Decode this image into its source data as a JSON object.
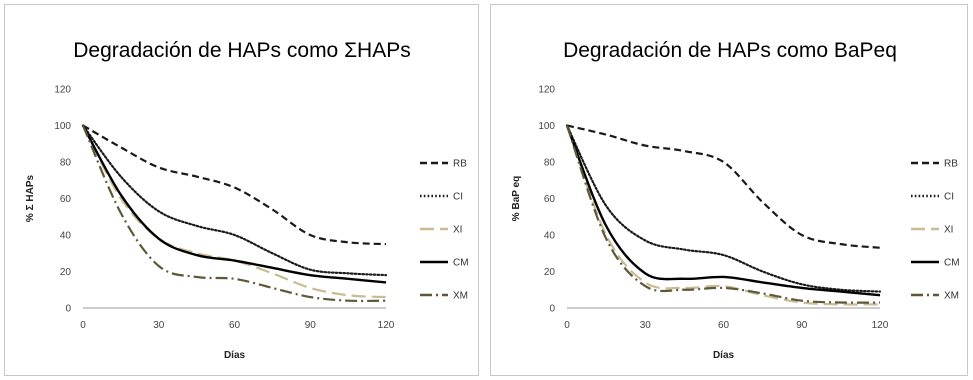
{
  "chart_data": [
    {
      "type": "line",
      "title": "Degradación de HAPs como ΣHAPs",
      "xlabel": "Días",
      "ylabel": "% Σ HAPs",
      "x_ticks": [
        "0",
        "30",
        "60",
        "90",
        "120"
      ],
      "y_ticks": [
        "0",
        "20",
        "40",
        "60",
        "80",
        "100",
        "120"
      ],
      "xlim": [
        0,
        120
      ],
      "ylim": [
        0,
        120
      ],
      "grid": false,
      "legend_position": "right",
      "series": [
        {
          "name": "RB",
          "color": "#1a1a1a",
          "style": "dashed",
          "x": [
            0,
            15,
            30,
            45,
            60,
            75,
            90,
            105,
            120
          ],
          "y": [
            100,
            88,
            77,
            72,
            66,
            54,
            40,
            36,
            35
          ]
        },
        {
          "name": "CI",
          "color": "#1a1a1a",
          "style": "dotted",
          "x": [
            0,
            15,
            30,
            45,
            60,
            75,
            90,
            105,
            120
          ],
          "y": [
            100,
            72,
            53,
            45,
            40,
            30,
            21,
            19,
            18
          ]
        },
        {
          "name": "XI",
          "color": "#c9bc95",
          "style": "long-dash",
          "x": [
            0,
            15,
            30,
            45,
            60,
            75,
            90,
            105,
            120
          ],
          "y": [
            100,
            60,
            38,
            30,
            26,
            19,
            11,
            7,
            6
          ]
        },
        {
          "name": "CM",
          "color": "#000000",
          "style": "solid",
          "x": [
            0,
            15,
            30,
            45,
            60,
            75,
            90,
            105,
            120
          ],
          "y": [
            100,
            62,
            38,
            29,
            26,
            22,
            18,
            16,
            14
          ]
        },
        {
          "name": "XM",
          "color": "#5e5839",
          "style": "dash-dot",
          "x": [
            0,
            15,
            30,
            45,
            60,
            75,
            90,
            105,
            120
          ],
          "y": [
            100,
            52,
            23,
            17,
            16,
            11,
            6,
            4,
            4
          ]
        }
      ]
    },
    {
      "type": "line",
      "title": "Degradación de HAPs como BaPeq",
      "xlabel": "Días",
      "ylabel": "% BaP eq",
      "x_ticks": [
        "0",
        "30",
        "60",
        "90",
        "120"
      ],
      "y_ticks": [
        "0",
        "20",
        "40",
        "60",
        "80",
        "100",
        "120"
      ],
      "xlim": [
        0,
        120
      ],
      "ylim": [
        0,
        120
      ],
      "grid": false,
      "legend_position": "right",
      "series": [
        {
          "name": "RB",
          "color": "#1a1a1a",
          "style": "dashed",
          "x": [
            0,
            15,
            30,
            45,
            60,
            75,
            90,
            105,
            120
          ],
          "y": [
            100,
            95,
            89,
            86,
            80,
            58,
            40,
            35,
            33
          ]
        },
        {
          "name": "CI",
          "color": "#1a1a1a",
          "style": "dotted",
          "x": [
            0,
            15,
            30,
            45,
            60,
            75,
            90,
            105,
            120
          ],
          "y": [
            100,
            56,
            37,
            32,
            29,
            20,
            13,
            10,
            9
          ]
        },
        {
          "name": "XI",
          "color": "#c9bc95",
          "style": "long-dash",
          "x": [
            0,
            15,
            30,
            45,
            60,
            75,
            90,
            105,
            120
          ],
          "y": [
            100,
            40,
            14,
            11,
            12,
            7,
            3,
            2,
            2
          ]
        },
        {
          "name": "CM",
          "color": "#000000",
          "style": "solid",
          "x": [
            0,
            15,
            30,
            45,
            60,
            75,
            90,
            105,
            120
          ],
          "y": [
            100,
            45,
            19,
            16,
            17,
            14,
            11,
            9,
            7
          ]
        },
        {
          "name": "XM",
          "color": "#5e5839",
          "style": "dash-dot",
          "x": [
            0,
            15,
            30,
            45,
            60,
            75,
            90,
            105,
            120
          ],
          "y": [
            100,
            38,
            12,
            10,
            11,
            8,
            4,
            3,
            3
          ]
        }
      ]
    }
  ]
}
